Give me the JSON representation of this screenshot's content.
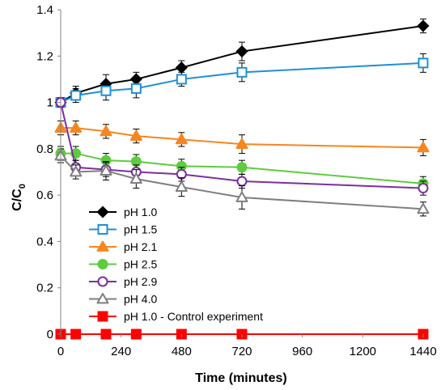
{
  "chart_data": {
    "type": "line",
    "xlabel": "Time (minutes)",
    "ylabel_main": "C/C",
    "ylabel_sub": "0",
    "xlim": [
      0,
      1440
    ],
    "ylim": [
      0,
      1.4
    ],
    "x_ticks": [
      0,
      240,
      480,
      720,
      960,
      1200,
      1440
    ],
    "y_ticks": [
      0,
      0.2,
      0.4,
      0.6,
      0.8,
      1,
      1.2,
      1.4
    ],
    "y_tick_labels": [
      "0",
      "0.2",
      "0.4",
      "0.6",
      "0.8",
      "1",
      "1.2",
      "1.4"
    ],
    "legend_position": "lower-left",
    "grid": false,
    "series": [
      {
        "name": "pH 1.0",
        "color": "#000000",
        "marker": "diamond",
        "filled": true,
        "x": [
          0,
          60,
          180,
          300,
          480,
          720,
          1440
        ],
        "y": [
          1.0,
          1.04,
          1.08,
          1.1,
          1.15,
          1.22,
          1.33
        ],
        "err": [
          0.02,
          0.03,
          0.04,
          0.03,
          0.03,
          0.04,
          0.03
        ]
      },
      {
        "name": "pH 1.5",
        "color": "#1f8fd6",
        "marker": "square",
        "filled": false,
        "x": [
          0,
          60,
          180,
          300,
          480,
          720,
          1440
        ],
        "y": [
          1.0,
          1.03,
          1.05,
          1.06,
          1.1,
          1.13,
          1.17
        ],
        "err": [
          0.02,
          0.03,
          0.04,
          0.04,
          0.03,
          0.04,
          0.04
        ]
      },
      {
        "name": "pH 2.1",
        "color": "#f7861f",
        "marker": "triangle",
        "filled": true,
        "x": [
          0,
          60,
          180,
          300,
          480,
          720,
          1440
        ],
        "y": [
          0.89,
          0.89,
          0.875,
          0.855,
          0.84,
          0.82,
          0.805
        ],
        "err": [
          0.03,
          0.03,
          0.03,
          0.03,
          0.03,
          0.04,
          0.035
        ]
      },
      {
        "name": "pH 2.5",
        "color": "#5dcc3f",
        "marker": "circle",
        "filled": true,
        "x": [
          0,
          60,
          180,
          300,
          480,
          720,
          1440
        ],
        "y": [
          0.78,
          0.78,
          0.75,
          0.745,
          0.725,
          0.72,
          0.65
        ],
        "err": [
          0.03,
          0.03,
          0.03,
          0.03,
          0.03,
          0.03,
          0.03
        ]
      },
      {
        "name": "pH 2.9",
        "color": "#7b2fa0",
        "marker": "circle",
        "filled": false,
        "x": [
          0,
          60,
          180,
          300,
          480,
          720,
          1440
        ],
        "y": [
          1.0,
          0.72,
          0.71,
          0.7,
          0.69,
          0.66,
          0.63
        ],
        "err": [
          0.02,
          0.03,
          0.03,
          0.03,
          0.03,
          0.03,
          0.03
        ]
      },
      {
        "name": "pH 4.0",
        "color": "#7f7f7f",
        "marker": "triangle",
        "filled": false,
        "x": [
          0,
          60,
          180,
          300,
          480,
          720,
          1440
        ],
        "y": [
          0.77,
          0.7,
          0.705,
          0.67,
          0.635,
          0.59,
          0.54
        ],
        "err": [
          0.03,
          0.03,
          0.04,
          0.04,
          0.04,
          0.05,
          0.03
        ]
      },
      {
        "name": "pH 1.0  - Control experiment",
        "color": "#ff0000",
        "marker": "square",
        "filled": true,
        "x": [
          0,
          60,
          180,
          300,
          480,
          720,
          1440
        ],
        "y": [
          0,
          0,
          0,
          0,
          0,
          0,
          0
        ],
        "err": [
          0,
          0,
          0,
          0,
          0,
          0,
          0
        ]
      }
    ]
  }
}
